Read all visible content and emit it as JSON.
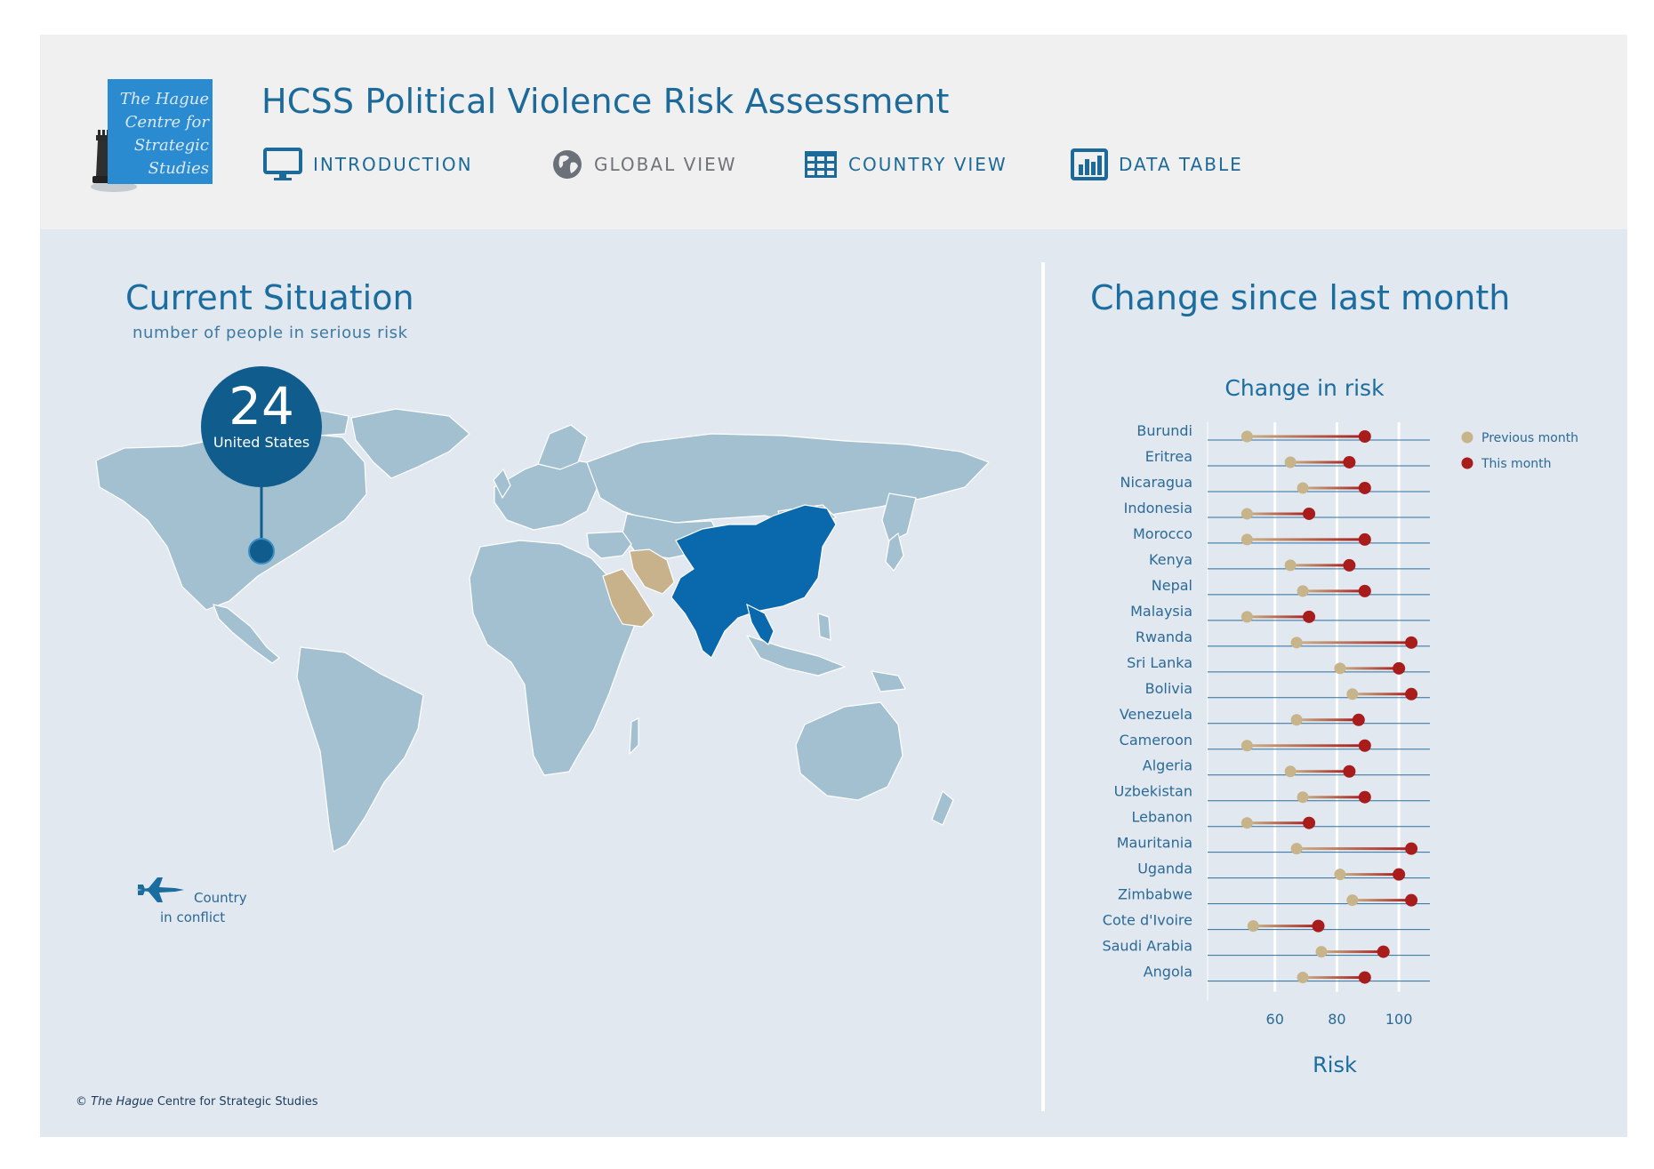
{
  "header": {
    "logo_lines": [
      "The Hague",
      "Centre for",
      "Strategic",
      "Studies"
    ],
    "title": "HCSS Political Violence Risk Assessment",
    "nav": [
      {
        "label": "INTRODUCTION",
        "icon": "monitor-icon"
      },
      {
        "label": "GLOBAL VIEW",
        "icon": "globe-icon"
      },
      {
        "label": "COUNTRY VIEW",
        "icon": "grid-table-icon"
      },
      {
        "label": "DATA TABLE",
        "icon": "bar-chart-icon"
      }
    ]
  },
  "left_panel": {
    "title": "Current Situation",
    "subtitle": "number of people in serious risk",
    "bubble": {
      "value": "24",
      "label": "United States"
    },
    "legend": {
      "icon": "fighter-jet-icon",
      "label_line1": "Country",
      "label_line2": "in conflict"
    },
    "copyright_prefix": "©",
    "copyright_italic": "The Hague",
    "copyright_rest": "Centre for Strategic Studies",
    "colors": {
      "conflict": "#0a68ad",
      "highlight": "#c7b28c",
      "land": "#a3c0d1",
      "ocean": "#e2e8ef"
    }
  },
  "right_panel": {
    "title": "Change since last month"
  },
  "chart_data": {
    "type": "dumbbell",
    "title": "Change in risk",
    "xlabel": "Risk",
    "xticks": [
      60,
      80,
      100
    ],
    "xlim": [
      40,
      110
    ],
    "legend": [
      {
        "name": "Previous month",
        "color": "#c8b48a"
      },
      {
        "name": "This month",
        "color": "#a81c1c"
      }
    ],
    "categories": [
      "Burundi",
      "Eritrea",
      "Nicaragua",
      "Indonesia",
      "Morocco",
      "Kenya",
      "Nepal",
      "Malaysia",
      "Rwanda",
      "Sri Lanka",
      "Bolivia",
      "Venezuela",
      "Cameroon",
      "Algeria",
      "Uzbekistan",
      "Lebanon",
      "Mauritania",
      "Uganda",
      "Zimbabwe",
      "Cote d'Ivoire",
      "Saudi Arabia",
      "Angola"
    ],
    "series": [
      {
        "name": "Previous month",
        "values": [
          51,
          65,
          69,
          51,
          51,
          65,
          69,
          51,
          67,
          81,
          85,
          67,
          51,
          65,
          69,
          51,
          67,
          81,
          85,
          53,
          75,
          69
        ]
      },
      {
        "name": "This month",
        "values": [
          89,
          84,
          89,
          71,
          89,
          84,
          89,
          71,
          104,
          100,
          104,
          87,
          89,
          84,
          89,
          71,
          104,
          100,
          104,
          74,
          95,
          89
        ]
      }
    ]
  }
}
